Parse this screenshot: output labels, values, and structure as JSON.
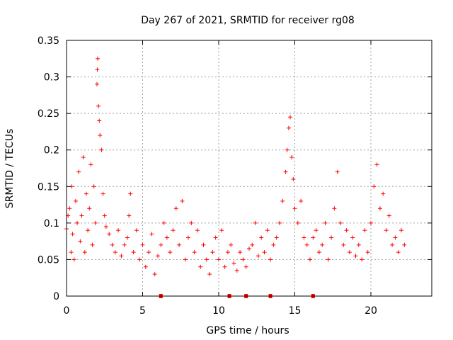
{
  "chart_data": {
    "type": "scatter",
    "title": "Day 267 of 2021, SRMTID for receiver rg08",
    "xlabel": "GPS time / hours",
    "ylabel": "SRMTID / TECUs",
    "xlim": [
      0,
      24
    ],
    "ylim": [
      0,
      0.35
    ],
    "xticks": [
      0,
      5,
      10,
      15,
      20
    ],
    "xtick_labels": [
      "0",
      "5",
      "10",
      "15",
      "20"
    ],
    "yticks": [
      0,
      0.05,
      0.1,
      0.15,
      0.2,
      0.25,
      0.3,
      0.35
    ],
    "ytick_labels": [
      "0",
      "0.05",
      "0.1",
      "0.15",
      "0.2",
      "0.25",
      "0.3",
      "0.35"
    ],
    "grid": true,
    "marker": "+",
    "color": "#ff0000",
    "series": [
      {
        "name": "SRMTID",
        "points": [
          [
            0.0,
            0.092
          ],
          [
            0.1,
            0.11
          ],
          [
            0.2,
            0.12
          ],
          [
            0.3,
            0.06
          ],
          [
            0.35,
            0.15
          ],
          [
            0.4,
            0.085
          ],
          [
            0.5,
            0.05
          ],
          [
            0.6,
            0.13
          ],
          [
            0.7,
            0.1
          ],
          [
            0.8,
            0.17
          ],
          [
            0.9,
            0.075
          ],
          [
            1.0,
            0.11
          ],
          [
            1.1,
            0.19
          ],
          [
            1.2,
            0.06
          ],
          [
            1.3,
            0.14
          ],
          [
            1.4,
            0.09
          ],
          [
            1.5,
            0.12
          ],
          [
            1.6,
            0.18
          ],
          [
            1.7,
            0.07
          ],
          [
            1.8,
            0.15
          ],
          [
            1.9,
            0.1
          ],
          [
            2.0,
            0.29
          ],
          [
            2.02,
            0.31
          ],
          [
            2.05,
            0.325
          ],
          [
            2.1,
            0.26
          ],
          [
            2.15,
            0.24
          ],
          [
            2.2,
            0.22
          ],
          [
            2.3,
            0.2
          ],
          [
            2.4,
            0.14
          ],
          [
            2.5,
            0.11
          ],
          [
            2.6,
            0.095
          ],
          [
            2.8,
            0.085
          ],
          [
            3.0,
            0.07
          ],
          [
            3.2,
            0.06
          ],
          [
            3.4,
            0.09
          ],
          [
            3.6,
            0.055
          ],
          [
            3.8,
            0.07
          ],
          [
            4.0,
            0.08
          ],
          [
            4.1,
            0.11
          ],
          [
            4.2,
            0.14
          ],
          [
            4.4,
            0.06
          ],
          [
            4.6,
            0.09
          ],
          [
            4.8,
            0.05
          ],
          [
            5.0,
            0.07
          ],
          [
            5.2,
            0.04
          ],
          [
            5.4,
            0.06
          ],
          [
            5.6,
            0.085
          ],
          [
            5.8,
            0.03
          ],
          [
            6.0,
            0.055
          ],
          [
            6.2,
            0.07
          ],
          [
            6.4,
            0.1
          ],
          [
            6.6,
            0.08
          ],
          [
            6.8,
            0.06
          ],
          [
            7.0,
            0.09
          ],
          [
            7.2,
            0.12
          ],
          [
            7.4,
            0.07
          ],
          [
            7.6,
            0.13
          ],
          [
            7.8,
            0.05
          ],
          [
            8.0,
            0.08
          ],
          [
            8.2,
            0.1
          ],
          [
            8.4,
            0.06
          ],
          [
            8.6,
            0.09
          ],
          [
            8.8,
            0.04
          ],
          [
            9.0,
            0.07
          ],
          [
            9.2,
            0.05
          ],
          [
            9.4,
            0.03
          ],
          [
            9.6,
            0.06
          ],
          [
            9.8,
            0.08
          ],
          [
            10.0,
            0.05
          ],
          [
            10.2,
            0.09
          ],
          [
            10.4,
            0.04
          ],
          [
            10.6,
            0.06
          ],
          [
            10.8,
            0.07
          ],
          [
            11.0,
            0.045
          ],
          [
            11.2,
            0.035
          ],
          [
            11.4,
            0.06
          ],
          [
            11.6,
            0.05
          ],
          [
            11.8,
            0.04
          ],
          [
            12.0,
            0.065
          ],
          [
            12.2,
            0.07
          ],
          [
            12.4,
            0.1
          ],
          [
            12.6,
            0.055
          ],
          [
            12.8,
            0.08
          ],
          [
            13.0,
            0.06
          ],
          [
            13.2,
            0.09
          ],
          [
            13.4,
            0.05
          ],
          [
            13.6,
            0.07
          ],
          [
            13.8,
            0.08
          ],
          [
            14.0,
            0.1
          ],
          [
            14.2,
            0.13
          ],
          [
            14.4,
            0.17
          ],
          [
            14.5,
            0.2
          ],
          [
            14.6,
            0.23
          ],
          [
            14.7,
            0.245
          ],
          [
            14.8,
            0.19
          ],
          [
            14.9,
            0.16
          ],
          [
            15.0,
            0.12
          ],
          [
            15.2,
            0.1
          ],
          [
            15.4,
            0.13
          ],
          [
            15.6,
            0.08
          ],
          [
            15.8,
            0.07
          ],
          [
            16.0,
            0.05
          ],
          [
            16.2,
            0.08
          ],
          [
            16.4,
            0.09
          ],
          [
            16.6,
            0.06
          ],
          [
            16.8,
            0.07
          ],
          [
            17.0,
            0.1
          ],
          [
            17.2,
            0.05
          ],
          [
            17.4,
            0.08
          ],
          [
            17.6,
            0.12
          ],
          [
            17.8,
            0.17
          ],
          [
            18.0,
            0.1
          ],
          [
            18.2,
            0.07
          ],
          [
            18.4,
            0.09
          ],
          [
            18.6,
            0.06
          ],
          [
            18.8,
            0.08
          ],
          [
            19.0,
            0.055
          ],
          [
            19.2,
            0.07
          ],
          [
            19.4,
            0.05
          ],
          [
            19.6,
            0.09
          ],
          [
            19.8,
            0.06
          ],
          [
            20.0,
            0.1
          ],
          [
            20.2,
            0.15
          ],
          [
            20.4,
            0.18
          ],
          [
            20.6,
            0.12
          ],
          [
            20.8,
            0.14
          ],
          [
            21.0,
            0.09
          ],
          [
            21.2,
            0.11
          ],
          [
            21.4,
            0.07
          ],
          [
            21.6,
            0.08
          ],
          [
            21.8,
            0.06
          ],
          [
            22.0,
            0.09
          ],
          [
            22.2,
            0.07
          ]
        ]
      }
    ],
    "zero_markers_x": [
      6.2,
      10.7,
      11.8,
      13.4,
      16.2
    ]
  }
}
